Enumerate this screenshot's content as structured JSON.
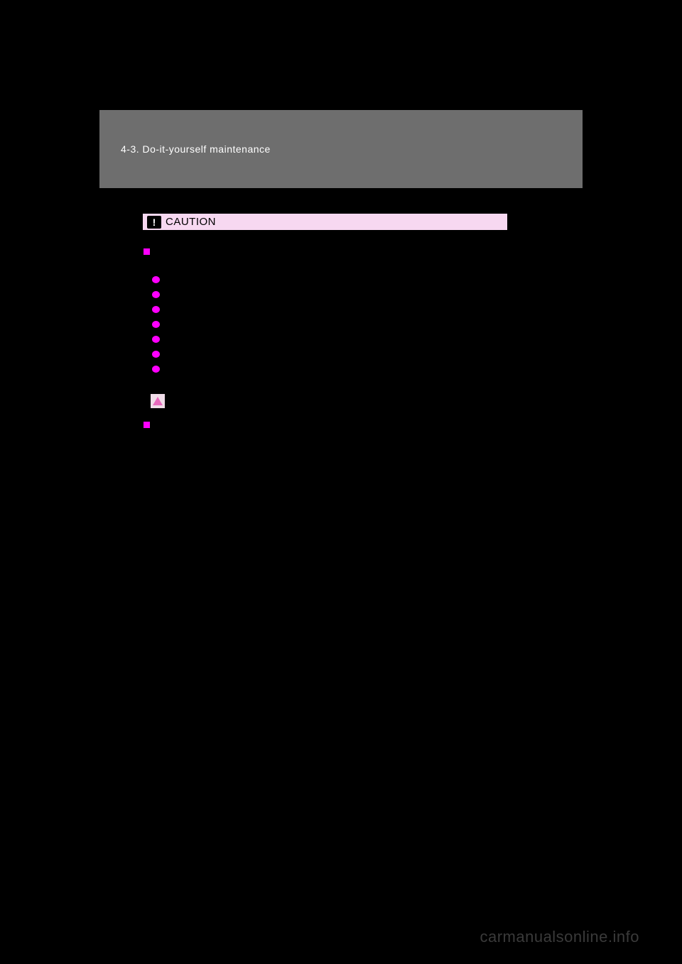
{
  "header": {
    "breadcrumb": "4-3. Do-it-yourself maintenance"
  },
  "caution": {
    "label": "CAUTION"
  },
  "colors": {
    "background": "#000000",
    "header_bar": "#6e6e6e",
    "header_text": "#ffffff",
    "caution_bg": "#f7d8f1",
    "magenta": "#ff00ff",
    "triangle_bg": "#f0dce8",
    "triangle": "#e869bd",
    "watermark": "#3a3a3a"
  },
  "watermark": "carmanualsonline.info"
}
